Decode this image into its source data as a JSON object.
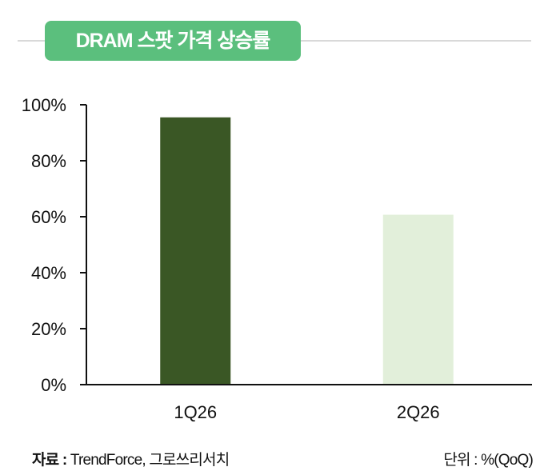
{
  "header": {
    "title": "DRAM 스팟 가격 상승률"
  },
  "footer": {
    "source_label": "자료 :",
    "source_value": "TrendForce, 그로쓰리서치",
    "unit": "단위 : %(QoQ)"
  },
  "chart_data": {
    "type": "bar",
    "title": "DRAM 스팟 가격 상승률",
    "categories": [
      "1Q26",
      "2Q26"
    ],
    "values": [
      95.5,
      60.7
    ],
    "value_unit": "%",
    "ylim": [
      0,
      100
    ],
    "yticks": [
      {
        "value": 0,
        "label": "0%"
      },
      {
        "value": 20,
        "label": "20%"
      },
      {
        "value": 40,
        "label": "40%"
      },
      {
        "value": 60,
        "label": "60%"
      },
      {
        "value": 80,
        "label": "80%"
      },
      {
        "value": 100,
        "label": "100%"
      }
    ],
    "bar_colors": [
      "#3a5725",
      "#e2efda"
    ],
    "grid": false,
    "legend": "none",
    "xlabel": "",
    "ylabel": ""
  }
}
